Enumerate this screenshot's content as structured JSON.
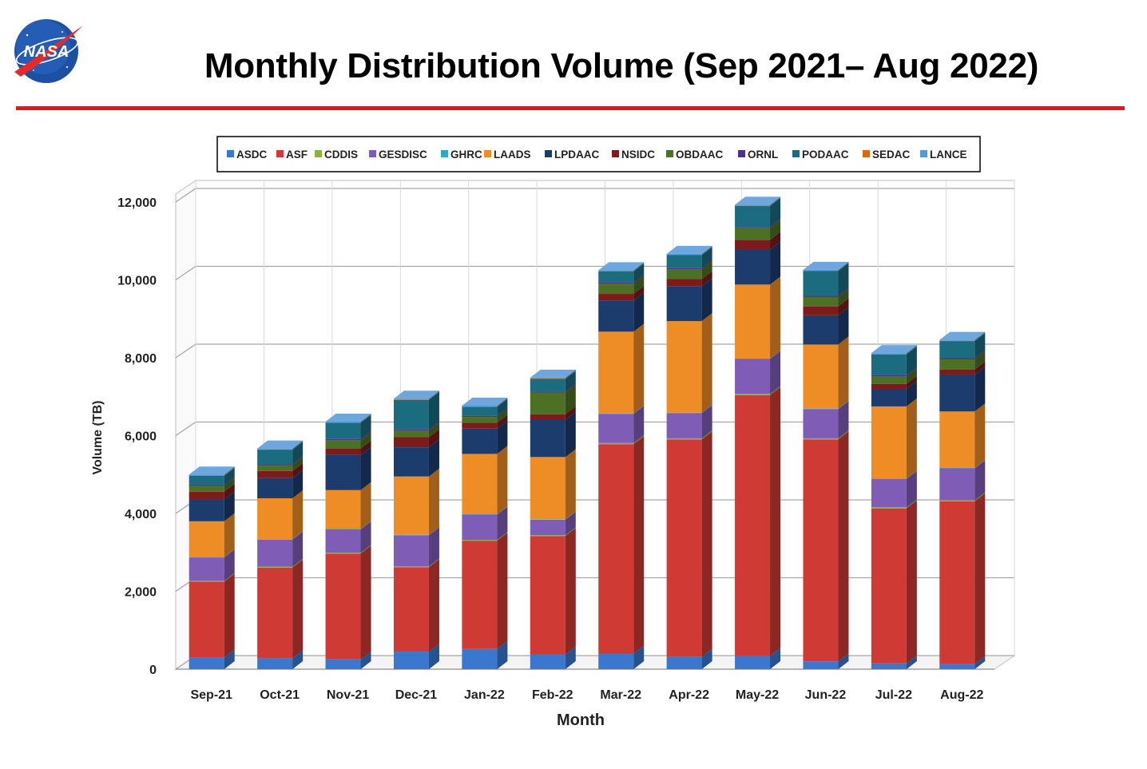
{
  "slide": {
    "title": "Monthly Distribution Volume (Sep 2021– Aug 2022)",
    "logo_text": "NASA"
  },
  "colors": {
    "ASDC": "#3a78d0",
    "ASF": "#cf3a34",
    "CDDIS": "#86b43e",
    "GESDISC": "#7f5db6",
    "GHRC": "#2fa9c4",
    "LAADS": "#ee8c26",
    "LPDAAC": "#1c3c6e",
    "NSIDC": "#7c1a1c",
    "OBDAAC": "#4c7024",
    "ORNL": "#4b3189",
    "PODAAC": "#1c6c80",
    "SEDAC": "#dd6614",
    "LANCE": "#5598d6",
    "title_rule": "#e0191f"
  },
  "chart_data": {
    "type": "bar",
    "stacked": true,
    "title": "",
    "xlabel": "Month",
    "ylabel": "Volume (TB)",
    "ylim": [
      0,
      12000
    ],
    "yticks": [
      0,
      2000,
      4000,
      6000,
      8000,
      10000,
      12000
    ],
    "ytick_labels": [
      "0",
      "2,000",
      "4,000",
      "6,000",
      "8,000",
      "10,000",
      "12,000"
    ],
    "grid": true,
    "legend_position": "top",
    "categories": [
      "Sep-21",
      "Oct-21",
      "Nov-21",
      "Dec-21",
      "Jan-22",
      "Feb-22",
      "Mar-22",
      "Apr-22",
      "May-22",
      "Jun-22",
      "Jul-22",
      "Aug-22"
    ],
    "series": [
      {
        "name": "ASDC",
        "values": [
          300,
          280,
          250,
          450,
          520,
          380,
          400,
          320,
          340,
          200,
          150,
          130
        ]
      },
      {
        "name": "ASF",
        "values": [
          1950,
          2330,
          2720,
          2170,
          2780,
          3040,
          5380,
          5580,
          6700,
          5700,
          3980,
          4180
        ]
      },
      {
        "name": "CDDIS",
        "values": [
          20,
          20,
          20,
          20,
          20,
          20,
          30,
          30,
          30,
          30,
          30,
          30
        ]
      },
      {
        "name": "GESDISC",
        "values": [
          600,
          700,
          600,
          800,
          650,
          400,
          750,
          650,
          900,
          750,
          730,
          820
        ]
      },
      {
        "name": "GHRC",
        "values": [
          10,
          10,
          10,
          10,
          10,
          10,
          10,
          10,
          10,
          10,
          10,
          10
        ]
      },
      {
        "name": "LAADS",
        "values": [
          920,
          1050,
          1000,
          1500,
          1550,
          1600,
          2100,
          2350,
          1900,
          1650,
          1850,
          1450
        ]
      },
      {
        "name": "LPDAAC",
        "values": [
          560,
          520,
          900,
          750,
          650,
          950,
          800,
          900,
          900,
          750,
          450,
          950
        ]
      },
      {
        "name": "NSIDC",
        "values": [
          200,
          180,
          170,
          260,
          150,
          150,
          170,
          180,
          250,
          230,
          130,
          130
        ]
      },
      {
        "name": "OBDAAC",
        "values": [
          150,
          150,
          210,
          170,
          150,
          550,
          260,
          250,
          300,
          240,
          190,
          260
        ]
      },
      {
        "name": "ORNL",
        "values": [
          30,
          30,
          30,
          30,
          30,
          30,
          30,
          30,
          30,
          30,
          30,
          30
        ]
      },
      {
        "name": "PODAAC",
        "values": [
          230,
          370,
          420,
          760,
          230,
          330,
          290,
          340,
          540,
          640,
          540,
          440
        ]
      },
      {
        "name": "SEDAC",
        "values": [
          5,
          5,
          5,
          5,
          5,
          5,
          5,
          5,
          5,
          5,
          5,
          5
        ]
      },
      {
        "name": "LANCE",
        "values": [
          25,
          25,
          25,
          25,
          25,
          25,
          25,
          25,
          25,
          25,
          25,
          25
        ]
      }
    ]
  }
}
